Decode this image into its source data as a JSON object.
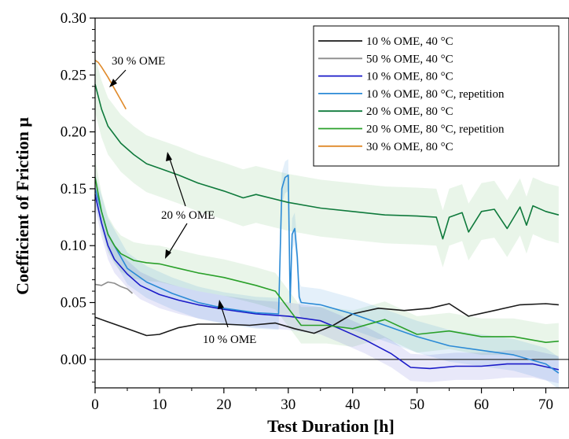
{
  "chart_data": {
    "type": "line",
    "title": "",
    "xlabel": "Test Duration [h]",
    "ylabel": "Coefficient of Friction μ",
    "xlim": [
      0,
      72
    ],
    "ylim": [
      -0.025,
      0.3
    ],
    "x_ticks": [
      0,
      10,
      20,
      30,
      40,
      50,
      60,
      70
    ],
    "x_tick_labels": [
      "0",
      "10",
      "20",
      "30",
      "40",
      "50",
      "60",
      "70"
    ],
    "y_ticks": [
      0.0,
      0.05,
      0.1,
      0.15,
      0.2,
      0.25,
      0.3
    ],
    "y_tick_labels": [
      "0.00",
      "0.05",
      "0.10",
      "0.15",
      "0.20",
      "0.25",
      "0.30"
    ],
    "grid": false,
    "legend_position": "top-right",
    "series": [
      {
        "name": "10 % OME, 40 °C",
        "color": "#1a1a1a",
        "x": [
          0,
          2,
          5,
          8,
          10,
          13,
          16,
          20,
          24,
          28,
          31,
          34,
          37,
          40,
          44,
          48,
          52,
          55,
          58,
          62,
          66,
          70,
          72
        ],
        "y": [
          0.037,
          0.033,
          0.027,
          0.021,
          0.022,
          0.028,
          0.031,
          0.031,
          0.03,
          0.032,
          0.027,
          0.023,
          0.03,
          0.04,
          0.045,
          0.043,
          0.045,
          0.049,
          0.038,
          0.043,
          0.048,
          0.049,
          0.048
        ]
      },
      {
        "name": "50 % OME, 40 °C",
        "color": "#8c8c8c",
        "x": [
          0,
          1,
          2,
          3,
          4,
          5,
          5.8
        ],
        "y": [
          0.066,
          0.065,
          0.068,
          0.067,
          0.064,
          0.062,
          0.058
        ]
      },
      {
        "name": "10 % OME, 80 °C",
        "color": "#1a1ac8",
        "x": [
          0,
          1,
          2,
          3,
          5,
          7,
          10,
          13,
          16,
          20,
          25,
          30,
          35,
          38,
          42,
          46,
          49,
          52,
          56,
          60,
          64,
          68,
          72
        ],
        "y": [
          0.145,
          0.12,
          0.1,
          0.088,
          0.075,
          0.065,
          0.057,
          0.052,
          0.048,
          0.044,
          0.04,
          0.038,
          0.034,
          0.027,
          0.017,
          0.005,
          -0.007,
          -0.008,
          -0.006,
          -0.006,
          -0.004,
          -0.004,
          -0.009
        ]
      },
      {
        "name": "10 % OME, 80 °C, repetition",
        "color": "#2b8ad6",
        "x": [
          0,
          2,
          5,
          8,
          12,
          16,
          20,
          25,
          28.5,
          29,
          29.5,
          30,
          30.3,
          30.6,
          31,
          31.4,
          31.7,
          32,
          35,
          40,
          45,
          50,
          55,
          60,
          65,
          70,
          72
        ],
        "y": [
          0.15,
          0.11,
          0.08,
          0.068,
          0.058,
          0.05,
          0.045,
          0.041,
          0.04,
          0.15,
          0.16,
          0.162,
          0.05,
          0.11,
          0.115,
          0.09,
          0.055,
          0.05,
          0.048,
          0.04,
          0.03,
          0.02,
          0.012,
          0.008,
          0.004,
          -0.004,
          -0.012
        ]
      },
      {
        "name": "20 % OME, 80 °C",
        "color": "#0f7a3c",
        "x": [
          0,
          1,
          2,
          4,
          6,
          8,
          10,
          13,
          16,
          20,
          23,
          25,
          30,
          35,
          40,
          45,
          50,
          53,
          54,
          55,
          57,
          58,
          60,
          62,
          64,
          66,
          67,
          68,
          70,
          72
        ],
        "y": [
          0.242,
          0.22,
          0.205,
          0.19,
          0.18,
          0.172,
          0.168,
          0.162,
          0.155,
          0.148,
          0.142,
          0.145,
          0.138,
          0.133,
          0.13,
          0.127,
          0.126,
          0.125,
          0.106,
          0.125,
          0.129,
          0.112,
          0.13,
          0.132,
          0.115,
          0.134,
          0.118,
          0.135,
          0.13,
          0.127
        ]
      },
      {
        "name": "20 % OME, 80 °C, repetition",
        "color": "#2aa02a",
        "x": [
          0,
          1,
          2,
          3,
          4,
          6,
          8,
          10,
          13,
          16,
          20,
          25,
          28,
          32,
          36,
          40,
          45,
          50,
          55,
          60,
          65,
          70,
          72
        ],
        "y": [
          0.16,
          0.13,
          0.11,
          0.1,
          0.093,
          0.087,
          0.085,
          0.084,
          0.08,
          0.076,
          0.072,
          0.065,
          0.06,
          0.03,
          0.03,
          0.027,
          0.035,
          0.022,
          0.025,
          0.02,
          0.02,
          0.015,
          0.016
        ]
      },
      {
        "name": "30 % OME, 80 °C",
        "color": "#e08a2a",
        "x": [
          0,
          0.5,
          1,
          2,
          3,
          4,
          4.8
        ],
        "y": [
          0.263,
          0.261,
          0.257,
          0.248,
          0.238,
          0.228,
          0.22
        ]
      }
    ],
    "annotations": [
      {
        "text": "30 % OME"
      },
      {
        "text": "20 % OME"
      },
      {
        "text": "10 % OME"
      }
    ]
  }
}
